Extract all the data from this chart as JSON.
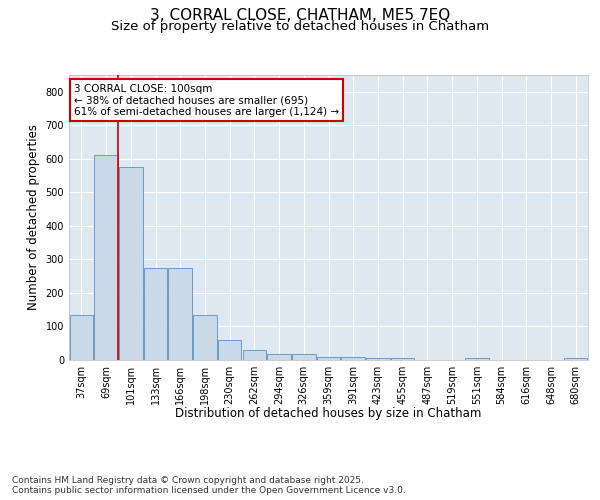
{
  "title_line1": "3, CORRAL CLOSE, CHATHAM, ME5 7EQ",
  "title_line2": "Size of property relative to detached houses in Chatham",
  "xlabel": "Distribution of detached houses by size in Chatham",
  "ylabel": "Number of detached properties",
  "categories": [
    "37sqm",
    "69sqm",
    "101sqm",
    "133sqm",
    "166sqm",
    "198sqm",
    "230sqm",
    "262sqm",
    "294sqm",
    "326sqm",
    "359sqm",
    "391sqm",
    "423sqm",
    "455sqm",
    "487sqm",
    "519sqm",
    "551sqm",
    "584sqm",
    "616sqm",
    "648sqm",
    "680sqm"
  ],
  "values": [
    133,
    610,
    575,
    275,
    275,
    133,
    60,
    30,
    18,
    18,
    10,
    10,
    5,
    5,
    1,
    1,
    5,
    1,
    1,
    1,
    5
  ],
  "bar_color": "#c9d9e8",
  "bar_edge_color": "#5a8fc0",
  "vline_color": "#cc0000",
  "annotation_box_text": "3 CORRAL CLOSE: 100sqm\n← 38% of detached houses are smaller (695)\n61% of semi-detached houses are larger (1,124) →",
  "annotation_box_color": "#cc0000",
  "ylim": [
    0,
    850
  ],
  "yticks": [
    0,
    100,
    200,
    300,
    400,
    500,
    600,
    700,
    800
  ],
  "background_color": "#dde8f0",
  "grid_color": "#ffffff",
  "footer_text": "Contains HM Land Registry data © Crown copyright and database right 2025.\nContains public sector information licensed under the Open Government Licence v3.0.",
  "title_fontsize": 11,
  "subtitle_fontsize": 9.5,
  "axis_label_fontsize": 8.5,
  "tick_fontsize": 7,
  "footer_fontsize": 6.5,
  "annotation_fontsize": 7.5
}
